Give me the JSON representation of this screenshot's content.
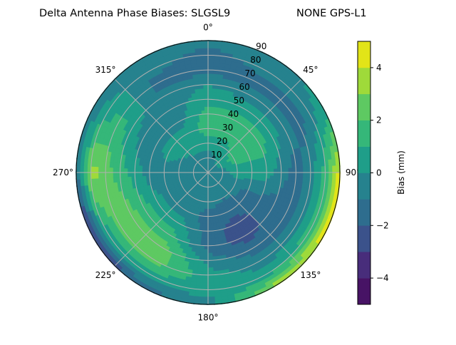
{
  "chart_data": {
    "type": "heatmap",
    "subtype": "polar-filled-contour",
    "title_left": "Delta Antenna Phase Biases: SLGSL9",
    "title_right": "NONE GPS-L1",
    "angular_ticks": [
      "0°",
      "45°",
      "90°",
      "135°",
      "180°",
      "225°",
      "270°",
      "315°"
    ],
    "angular_tick_values": [
      0,
      45,
      90,
      135,
      180,
      225,
      270,
      315
    ],
    "angular_direction": "clockwise",
    "angular_zero": "top",
    "radial_ticks": [
      "10",
      "20",
      "30",
      "40",
      "50",
      "60",
      "70",
      "80",
      "90"
    ],
    "radial_tick_values": [
      10,
      20,
      30,
      40,
      50,
      60,
      70,
      80,
      90
    ],
    "rlim": [
      0,
      90
    ],
    "grid": true,
    "colorbar": {
      "label": "Bias (mm)",
      "ticks": [
        "4",
        "2",
        "0",
        "−2",
        "−4"
      ],
      "tick_values": [
        4,
        2,
        0,
        -2,
        -4
      ],
      "levels": [
        -5,
        -4,
        -3,
        -2,
        -1,
        0,
        1,
        2,
        3,
        4,
        5
      ],
      "colors": [
        "#471365",
        "#482d7b",
        "#3b528b",
        "#2e6d8e",
        "#26828e",
        "#1f9e89",
        "#35b779",
        "#5ec962",
        "#9fda3a",
        "#e2e418"
      ],
      "placement": "right"
    },
    "azimuth": [
      0,
      30,
      60,
      90,
      120,
      150,
      180,
      210,
      240,
      270,
      300,
      330
    ],
    "zenith": [
      0,
      10,
      20,
      30,
      40,
      50,
      60,
      70,
      80,
      90
    ],
    "values": [
      [
        -0.5,
        -0.5,
        0.5,
        1.5,
        1.5,
        0.5,
        0,
        -1.5,
        -1.5,
        -0.5
      ],
      [
        -0.5,
        0,
        0.5,
        1.5,
        1.5,
        0.5,
        -0.5,
        -1.5,
        -0.5,
        -0.5
      ],
      [
        -0.5,
        0.3,
        1.5,
        1.5,
        1.5,
        0.5,
        -0.5,
        -1.5,
        -0.5,
        0.5
      ],
      [
        -0.5,
        -0.5,
        0.5,
        0.5,
        0.5,
        -0.5,
        -1.5,
        -0.5,
        1.5,
        4.5
      ],
      [
        -0.5,
        -0.5,
        -0.5,
        -1.5,
        -1.5,
        -1.5,
        -1.5,
        -0.5,
        1.5,
        4.5
      ],
      [
        -0.5,
        -0.5,
        -1,
        -1.5,
        -2.5,
        -2.5,
        -1.5,
        -0.5,
        0.5,
        3.5
      ],
      [
        -0.5,
        -0.5,
        -0.5,
        -1.5,
        -1.5,
        -1.5,
        -0.5,
        0.5,
        0.5,
        -0.5
      ],
      [
        -0.5,
        -0.5,
        -0.5,
        -0.5,
        0.5,
        1.5,
        2.5,
        2.5,
        0.5,
        -1.5
      ],
      [
        -0.5,
        -0.5,
        -0.5,
        -0.5,
        0.5,
        1.5,
        2.5,
        2.5,
        0.5,
        -3.5
      ],
      [
        -0.5,
        -0.5,
        -0.5,
        -0.5,
        -0.5,
        0.5,
        1.5,
        2.5,
        3.5,
        -1.5
      ],
      [
        -0.5,
        -0.5,
        0,
        0.5,
        -0.5,
        -0.5,
        0.5,
        1.5,
        0.5,
        -0.5
      ],
      [
        -0.5,
        -0.5,
        0.5,
        0.5,
        -0.5,
        -0.5,
        -0.5,
        -1.5,
        -0.5,
        -0.5
      ]
    ]
  }
}
